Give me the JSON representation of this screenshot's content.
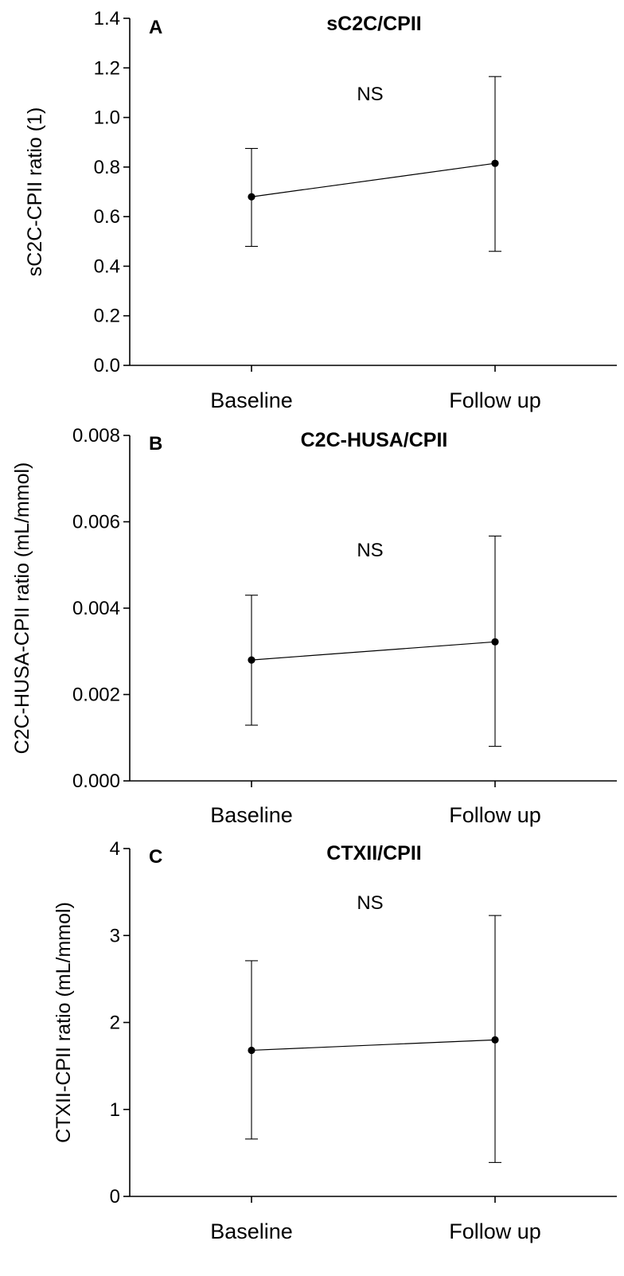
{
  "chart_data": [
    {
      "type": "line",
      "panel_label": "A",
      "title": "sC2C/CPII",
      "ylabel": "sC2C-CPII ratio (1)",
      "xlabel": "",
      "categories": [
        "Baseline",
        "Follow up"
      ],
      "values": [
        0.68,
        0.815
      ],
      "error_low": [
        0.48,
        0.46
      ],
      "error_high": [
        0.875,
        1.165
      ],
      "ylim": [
        0.0,
        1.4
      ],
      "yticks": [
        "0.0",
        "0.2",
        "0.4",
        "0.6",
        "0.8",
        "1.0",
        "1.2",
        "1.4"
      ],
      "annotation": "NS",
      "grid": false
    },
    {
      "type": "line",
      "panel_label": "B",
      "title": "C2C-HUSA/CPII",
      "ylabel": "C2C-HUSA-CPII ratio (mL/mmol)",
      "xlabel": "",
      "categories": [
        "Baseline",
        "Follow up"
      ],
      "values": [
        0.0028,
        0.00322
      ],
      "error_low": [
        0.00129,
        0.0008
      ],
      "error_high": [
        0.0043,
        0.00567
      ],
      "ylim": [
        0.0,
        0.008
      ],
      "yticks": [
        "0.000",
        "0.002",
        "0.004",
        "0.006",
        "0.008"
      ],
      "annotation": "NS",
      "grid": false
    },
    {
      "type": "line",
      "panel_label": "C",
      "title": "CTXII/CPII",
      "ylabel": "CTXII-CPII ratio (mL/mmol)",
      "xlabel": "",
      "categories": [
        "Baseline",
        "Follow up"
      ],
      "values": [
        1.68,
        1.8
      ],
      "error_low": [
        0.66,
        0.39
      ],
      "error_high": [
        2.71,
        3.23
      ],
      "ylim": [
        0,
        4
      ],
      "yticks": [
        "0",
        "1",
        "2",
        "3",
        "4"
      ],
      "annotation": "NS",
      "grid": false
    }
  ]
}
